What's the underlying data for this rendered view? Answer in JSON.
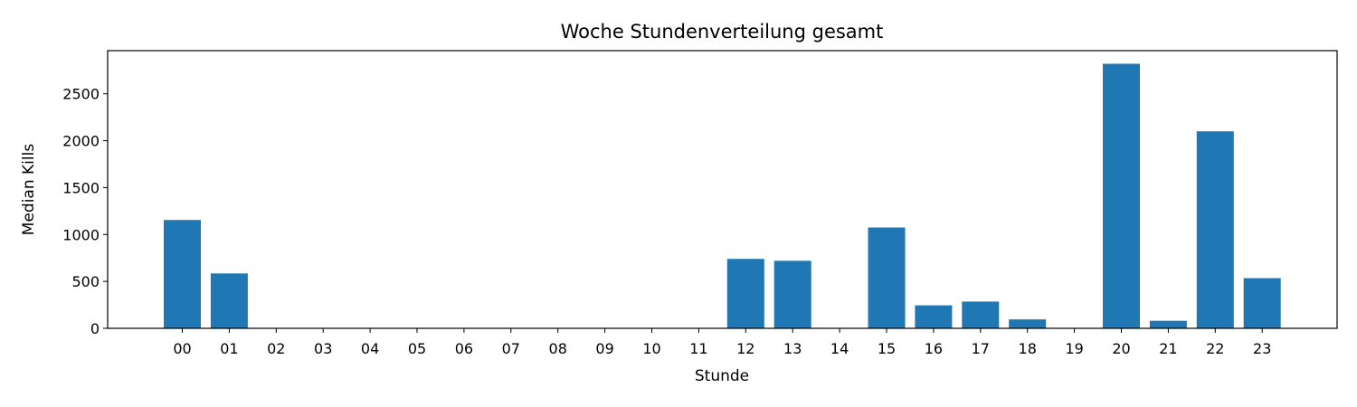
{
  "chart_data": {
    "type": "bar",
    "title": "Woche Stundenverteilung gesamt",
    "xlabel": "Stunde",
    "ylabel": "Median Kills",
    "categories": [
      "00",
      "01",
      "02",
      "03",
      "04",
      "05",
      "06",
      "07",
      "08",
      "09",
      "10",
      "11",
      "12",
      "13",
      "14",
      "15",
      "16",
      "17",
      "18",
      "19",
      "20",
      "21",
      "22",
      "23"
    ],
    "values": [
      1155,
      585,
      0,
      0,
      0,
      0,
      0,
      0,
      0,
      0,
      0,
      0,
      740,
      720,
      0,
      1075,
      245,
      285,
      95,
      5,
      2820,
      80,
      2100,
      535
    ],
    "yticks": [
      0,
      500,
      1000,
      1500,
      2000,
      2500
    ],
    "ylim": [
      0,
      2960
    ],
    "bar_color": "#1f77b4",
    "grid": false,
    "legend": "none"
  }
}
